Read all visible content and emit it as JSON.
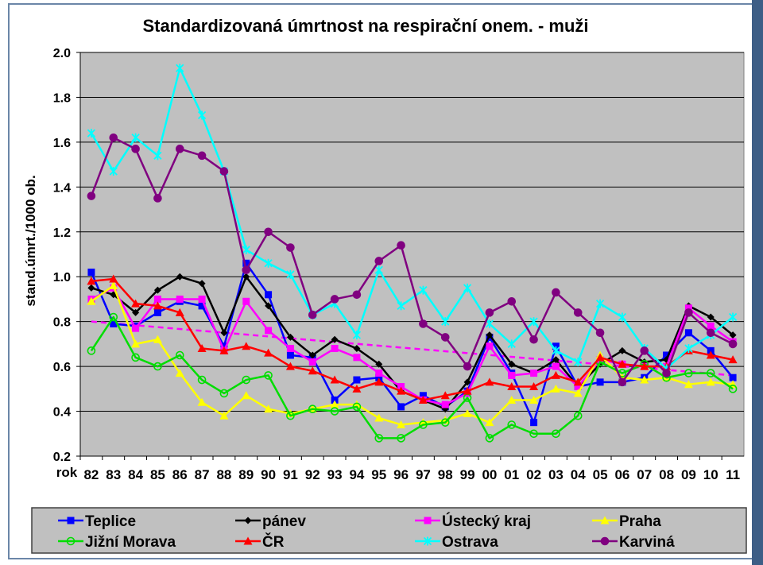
{
  "chart_data": {
    "type": "line",
    "title": "Standardizovaná úmrtnost na respirační onem. - muži",
    "xlabel": "rok",
    "ylabel": "stand.úmrt./1000 ob.",
    "ylim": [
      0.2,
      2.0
    ],
    "yticks": [
      "0.2",
      "0.4",
      "0.6",
      "0.8",
      "1.0",
      "1.2",
      "1.4",
      "1.6",
      "1.8",
      "2.0"
    ],
    "categories": [
      "82",
      "83",
      "84",
      "85",
      "86",
      "87",
      "88",
      "89",
      "90",
      "91",
      "92",
      "93",
      "94",
      "95",
      "96",
      "97",
      "98",
      "99",
      "00",
      "01",
      "02",
      "03",
      "04",
      "05",
      "06",
      "07",
      "08",
      "09",
      "10",
      "11"
    ],
    "grid": "horizontal",
    "legend": "bottom",
    "plot_background": "#c0c0c0",
    "series": [
      {
        "name": "Teplice",
        "color": "#0000ff",
        "marker": "square",
        "values": [
          1.02,
          0.79,
          0.78,
          0.84,
          0.89,
          0.87,
          0.69,
          1.06,
          0.92,
          0.65,
          0.64,
          0.45,
          0.54,
          0.55,
          0.42,
          0.47,
          0.42,
          0.49,
          0.73,
          0.57,
          0.35,
          0.69,
          0.51,
          0.53,
          0.53,
          0.55,
          0.65,
          0.75,
          0.67,
          0.55
        ]
      },
      {
        "name": "pánev",
        "color": "#000000",
        "marker": "diamond",
        "values": [
          0.95,
          0.92,
          0.84,
          0.94,
          1.0,
          0.97,
          0.75,
          1.0,
          0.87,
          0.73,
          0.65,
          0.72,
          0.68,
          0.61,
          0.49,
          0.45,
          0.41,
          0.53,
          0.74,
          0.61,
          0.57,
          0.63,
          0.51,
          0.61,
          0.67,
          0.62,
          0.63,
          0.87,
          0.82,
          0.74
        ]
      },
      {
        "name": "Ústecký kraj",
        "color": "#ff00ff",
        "marker": "square",
        "values": [
          0.9,
          0.95,
          0.77,
          0.9,
          0.9,
          0.9,
          0.67,
          0.89,
          0.76,
          0.68,
          0.62,
          0.68,
          0.64,
          0.57,
          0.51,
          0.45,
          0.43,
          0.48,
          0.69,
          0.56,
          0.57,
          0.6,
          0.51,
          0.63,
          0.61,
          0.6,
          0.6,
          0.86,
          0.78,
          0.71
        ]
      },
      {
        "name": "Praha",
        "color": "#ffff00",
        "marker": "triangle",
        "values": [
          0.89,
          0.96,
          0.7,
          0.72,
          0.57,
          0.44,
          0.38,
          0.47,
          0.41,
          0.39,
          0.41,
          0.43,
          0.43,
          0.37,
          0.34,
          0.35,
          0.36,
          0.39,
          0.35,
          0.45,
          0.45,
          0.5,
          0.48,
          0.65,
          0.55,
          0.54,
          0.55,
          0.52,
          0.53,
          0.52
        ]
      },
      {
        "name": "Jižní Morava",
        "color": "#00dd00",
        "marker": "circle",
        "values": [
          0.67,
          0.82,
          0.64,
          0.6,
          0.65,
          0.54,
          0.48,
          0.54,
          0.56,
          0.38,
          0.41,
          0.4,
          0.42,
          0.28,
          0.28,
          0.34,
          0.35,
          0.46,
          0.28,
          0.34,
          0.3,
          0.3,
          0.38,
          0.62,
          0.57,
          0.61,
          0.55,
          0.57,
          0.57,
          0.5
        ]
      },
      {
        "name": "ČR",
        "color": "#ff0000",
        "marker": "triangle",
        "values": [
          0.98,
          0.99,
          0.88,
          0.87,
          0.84,
          0.68,
          0.67,
          0.69,
          0.66,
          0.6,
          0.58,
          0.54,
          0.5,
          0.53,
          0.49,
          0.45,
          0.47,
          0.49,
          0.53,
          0.51,
          0.51,
          0.56,
          0.53,
          0.64,
          0.61,
          0.6,
          0.6,
          0.67,
          0.65,
          0.63
        ]
      },
      {
        "name": "Ostrava",
        "color": "#00ffff",
        "marker": "x",
        "values": [
          1.64,
          1.47,
          1.62,
          1.54,
          1.93,
          1.72,
          1.47,
          1.12,
          1.06,
          1.01,
          0.83,
          0.88,
          0.74,
          1.03,
          0.87,
          0.94,
          0.8,
          0.95,
          0.79,
          0.7,
          0.8,
          0.67,
          0.62,
          0.88,
          0.82,
          0.68,
          0.59,
          0.68,
          0.74,
          0.82
        ]
      },
      {
        "name": "Karviná",
        "color": "#800080",
        "marker": "circle",
        "values": [
          1.36,
          1.62,
          1.57,
          1.35,
          1.57,
          1.54,
          1.47,
          1.03,
          1.2,
          1.13,
          0.83,
          0.9,
          0.92,
          1.07,
          1.14,
          0.79,
          0.73,
          0.6,
          0.84,
          0.89,
          0.72,
          0.93,
          0.84,
          0.75,
          0.53,
          0.67,
          0.57,
          0.84,
          0.75,
          0.7
        ]
      }
    ],
    "trendline": {
      "color": "#ff00ff",
      "style": "dashed",
      "values": [
        0.8,
        0.56
      ]
    }
  }
}
